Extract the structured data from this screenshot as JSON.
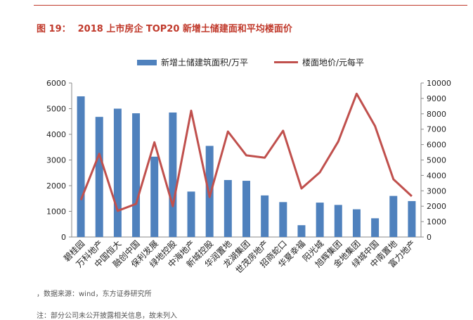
{
  "header": {
    "figure_number": "图 19：",
    "title": "2018 上市房企 TOP20 新增土储建面和平均楼面价"
  },
  "footer": {
    "source": "，数据来源：wind，东方证券研究所",
    "note": "注：部分公司未公开披露相关信息，故未列入"
  },
  "colors": {
    "bar": "#4f81bd",
    "line": "#c0504d",
    "accent": "#c0392b"
  },
  "chart_data": {
    "type": "bar",
    "categories": [
      "碧桂园",
      "万科地产",
      "中国恒大",
      "融创中国",
      "保利发展",
      "绿地控股",
      "中海地产",
      "新城控股",
      "华润置地",
      "龙湖集团",
      "世茂房地产",
      "招商蛇口",
      "华夏幸福",
      "阳光城",
      "旭辉集团",
      "金地集团",
      "绿城中国",
      "中南置地",
      "富力地产"
    ],
    "series": [
      {
        "name": "新增土储建筑面积/万平",
        "type": "bar",
        "axis": "left",
        "values": [
          5480,
          4680,
          5000,
          4820,
          3130,
          4850,
          1770,
          3550,
          2220,
          2190,
          1620,
          1360,
          460,
          1340,
          1250,
          1080,
          730,
          1600,
          1400
        ]
      },
      {
        "name": "楼面地价/元每平",
        "type": "line",
        "axis": "right",
        "values": [
          2400,
          5400,
          1700,
          2150,
          6150,
          2000,
          8200,
          2600,
          6850,
          5300,
          5150,
          6900,
          3150,
          4200,
          6200,
          9300,
          7200,
          3750,
          2650
        ]
      }
    ],
    "y_left": {
      "min": 0,
      "max": 6000,
      "ticks": [
        0,
        1000,
        2000,
        3000,
        4000,
        5000,
        6000
      ]
    },
    "y_right": {
      "min": 0,
      "max": 10000,
      "ticks": [
        0,
        1000,
        2000,
        3000,
        4000,
        5000,
        6000,
        7000,
        8000,
        9000,
        10000
      ]
    },
    "legend_position": "top",
    "grid": false
  }
}
